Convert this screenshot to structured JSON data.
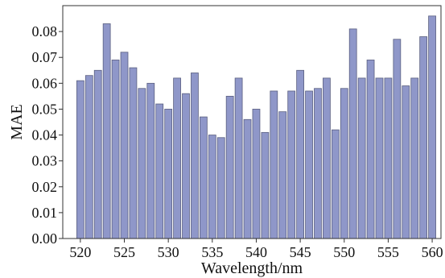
{
  "chart_data": {
    "type": "bar",
    "xlabel": "Wavelength/nm",
    "ylabel": "MAE",
    "xlim": [
      518,
      561
    ],
    "ylim": [
      0,
      0.09
    ],
    "x": [
      520,
      521,
      522,
      523,
      524,
      525,
      526,
      527,
      528,
      529,
      530,
      531,
      532,
      533,
      534,
      535,
      536,
      537,
      538,
      539,
      540,
      541,
      542,
      543,
      544,
      545,
      546,
      547,
      548,
      549,
      550,
      551,
      552,
      553,
      554,
      555,
      556,
      557,
      558,
      559,
      560
    ],
    "values": [
      0.061,
      0.063,
      0.065,
      0.083,
      0.069,
      0.072,
      0.066,
      0.058,
      0.06,
      0.052,
      0.05,
      0.062,
      0.056,
      0.064,
      0.047,
      0.04,
      0.039,
      0.055,
      0.062,
      0.046,
      0.05,
      0.041,
      0.057,
      0.049,
      0.057,
      0.065,
      0.057,
      0.058,
      0.062,
      0.042,
      0.058,
      0.081,
      0.062,
      0.069,
      0.062,
      0.062,
      0.077,
      0.059,
      0.062,
      0.078,
      0.086
    ],
    "xticks": [
      "520",
      "525",
      "530",
      "535",
      "540",
      "545",
      "550",
      "555",
      "560"
    ],
    "yticks": [
      "0.00",
      "0.01",
      "0.02",
      "0.03",
      "0.04",
      "0.05",
      "0.06",
      "0.07",
      "0.08"
    ],
    "colors": {
      "bar_fill": "#8f97c9",
      "bar_stroke": "#5a5f80",
      "axis": "#333333"
    }
  }
}
